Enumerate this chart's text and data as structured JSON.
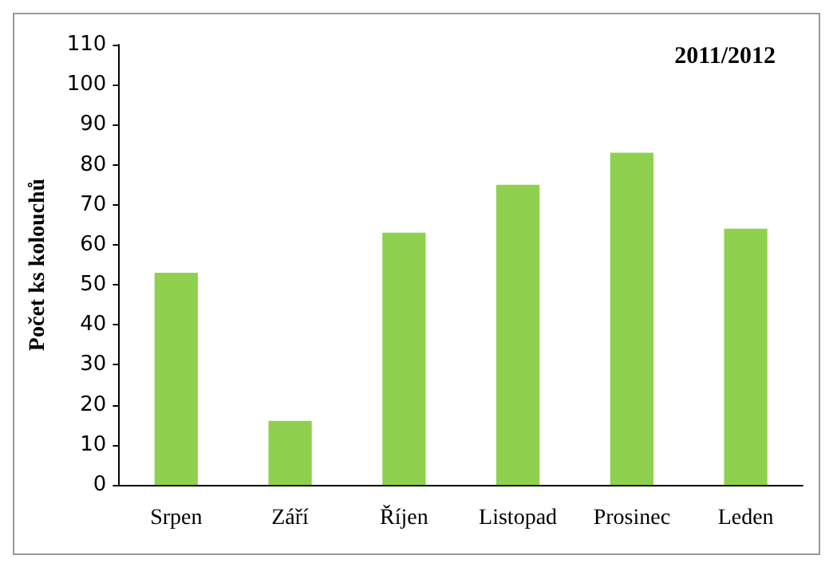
{
  "chart_data": {
    "type": "bar",
    "title": "2011/2012",
    "ylabel": "Počet ks kolouchů",
    "categories": [
      "Srpen",
      "Září",
      "Říjen",
      "Listopad",
      "Prosinec",
      "Leden"
    ],
    "values": [
      53,
      16,
      63,
      75,
      83,
      64
    ],
    "color": "#8fd14f",
    "ylim": [
      0,
      110
    ],
    "yticks": [
      0,
      10,
      20,
      30,
      40,
      50,
      60,
      70,
      80,
      90,
      100,
      110
    ],
    "grid": false
  }
}
